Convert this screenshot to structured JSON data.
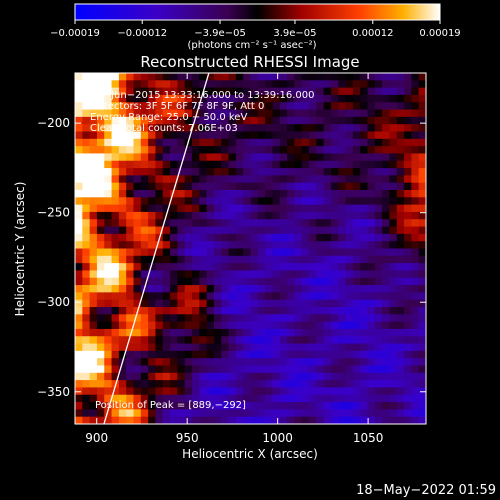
{
  "chart_data": {
    "type": "heatmap",
    "title": "Reconstructed RHESSI Image",
    "xlabel": "Heliocentric X (arcsec)",
    "ylabel": "Heliocentric Y (arcsec)",
    "xlim": [
      888,
      1082
    ],
    "ylim": [
      -368,
      -172
    ],
    "x_ticks": [
      900,
      950,
      1000,
      1050
    ],
    "y_ticks": [
      -200,
      -250,
      -300,
      -350
    ],
    "x_tick_labels": [
      "900",
      "950",
      "1000",
      "1050"
    ],
    "y_tick_labels": [
      "−200",
      "−250",
      "−300",
      "−350"
    ],
    "colorbar": {
      "min": -0.00019,
      "max": 0.00019,
      "ticks": [
        -0.00019,
        -0.00012,
        -3.9e-05,
        3.9e-05,
        0.00012,
        0.00019
      ],
      "tick_labels": [
        "−0.00019",
        "−0.00012",
        "−3.9e−05",
        "3.9e−05",
        "0.00012",
        "0.00019"
      ],
      "units": "(photons cm⁻² s⁻¹ asec⁻²)"
    },
    "annotations": [
      "18−Jun−2015 13:33:16.000 to 13:39:16.000",
      "Detectors: 3F 5F 6F 7F 8F 9F, Att 0",
      "Energy Range: 25.0 − 50.0 keV",
      "Clean    Total counts: 7.06E+03"
    ],
    "peak_label": "Position of Peak = [889,−292]",
    "limb_line": {
      "x": [
        904,
        962
      ],
      "y": [
        -368,
        -172
      ]
    },
    "grid": false
  },
  "footer": {
    "timestamp": "18−May−2022 01:59"
  },
  "colors": {
    "background": "#000000",
    "foreground": "#ffffff",
    "limb": "#ffffff"
  }
}
